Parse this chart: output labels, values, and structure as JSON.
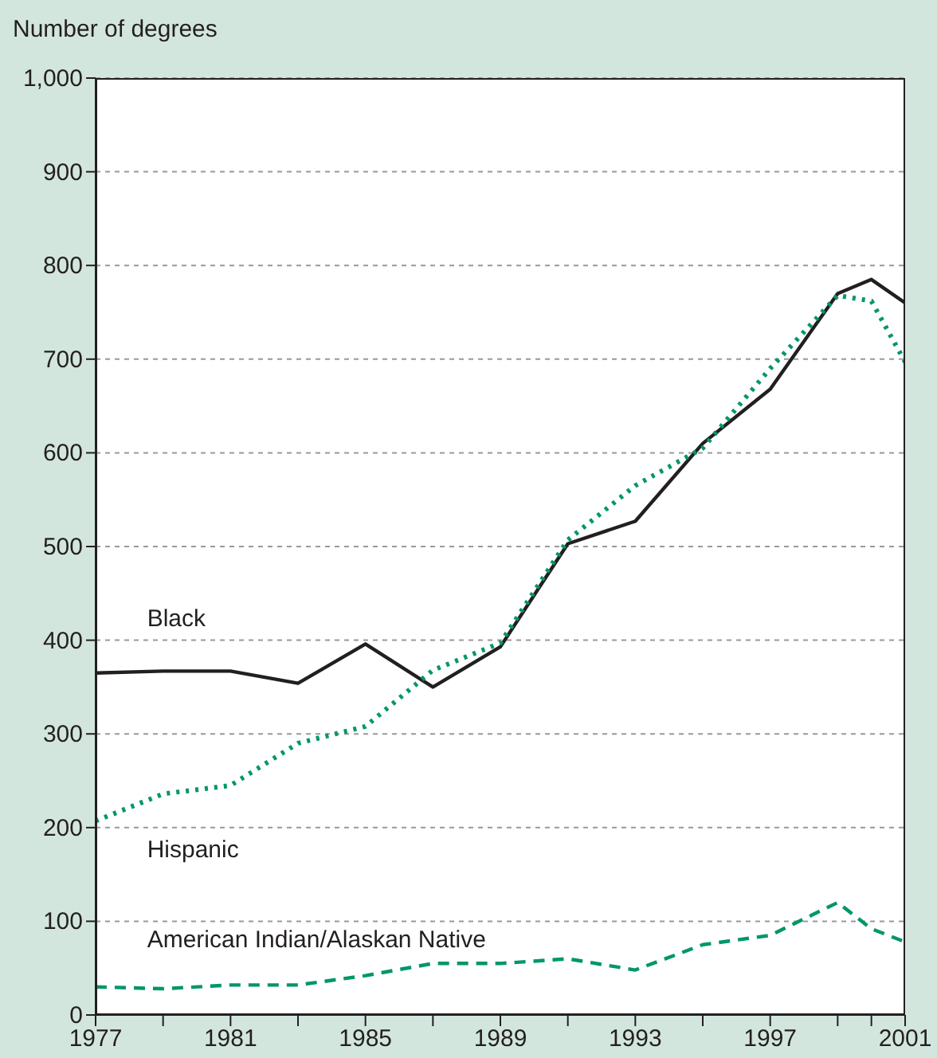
{
  "chart_data": {
    "type": "line",
    "ylabel": "Number of degrees",
    "x": [
      1977,
      1979,
      1981,
      1983,
      1985,
      1987,
      1989,
      1991,
      1993,
      1995,
      1997,
      1999,
      2000,
      2001
    ],
    "series": [
      {
        "name": "Black",
        "color": "#231f20",
        "line_style": "solid",
        "values": [
          365,
          367,
          367,
          354,
          396,
          350,
          393,
          503,
          527,
          610,
          668,
          770,
          785,
          760
        ]
      },
      {
        "name": "Hispanic",
        "color": "#00966c",
        "line_style": "dotted",
        "values": [
          207,
          236,
          245,
          290,
          308,
          368,
          397,
          507,
          565,
          605,
          690,
          768,
          762,
          697
        ]
      },
      {
        "name": "American Indian/Alaskan Native",
        "color": "#00966c",
        "line_style": "dashed",
        "values": [
          30,
          28,
          32,
          32,
          42,
          55,
          55,
          60,
          48,
          75,
          85,
          120,
          92,
          78
        ]
      }
    ],
    "xlim": [
      1977,
      2001
    ],
    "xticks": [
      1977,
      {
        "value": 1979,
        "label": null
      },
      1981,
      {
        "value": 1983,
        "label": null
      },
      1985,
      {
        "value": 1987,
        "label": null
      },
      1989,
      {
        "value": 1991,
        "label": null
      },
      1993,
      {
        "value": 1995,
        "label": null
      },
      1997,
      {
        "value": 1999,
        "label": null
      },
      {
        "value": 2000,
        "label": null
      },
      2001
    ],
    "ylim": [
      0,
      1000
    ],
    "yticks": [
      0,
      100,
      200,
      300,
      400,
      500,
      600,
      700,
      800,
      900,
      {
        "value": 1000,
        "label": "1,000"
      }
    ],
    "grid": "y",
    "marker": "none"
  }
}
